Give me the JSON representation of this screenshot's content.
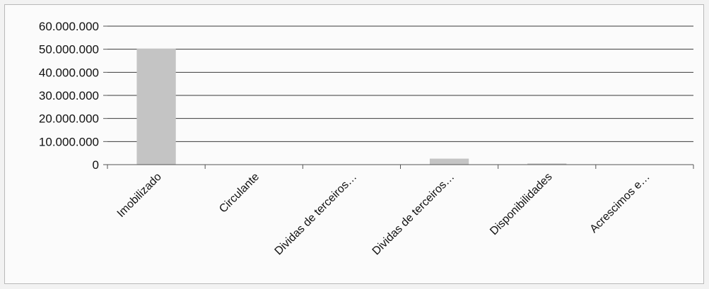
{
  "chart_data": {
    "type": "bar",
    "categories": [
      "Imobilizado",
      "Circulante",
      "Dividas de terceiros…",
      "Dividas de terceiros…",
      "Disponibilidades",
      "Acrescimos e…"
    ],
    "values": [
      50300000,
      0,
      0,
      2600000,
      500000,
      0
    ],
    "ylim": [
      0,
      60000000
    ],
    "y_ticks": [
      0,
      10000000,
      20000000,
      30000000,
      40000000,
      50000000,
      60000000
    ],
    "y_tick_labels": [
      "0",
      "10.000.000",
      "20.000.000",
      "30.000.000",
      "40.000.000",
      "50.000.000",
      "60.000.000"
    ],
    "grid": true,
    "legend": "none",
    "colors": {
      "bar": "#c4c4c4",
      "grid": "#3a3a3a",
      "axis": "#555555",
      "text": "#111111"
    }
  }
}
